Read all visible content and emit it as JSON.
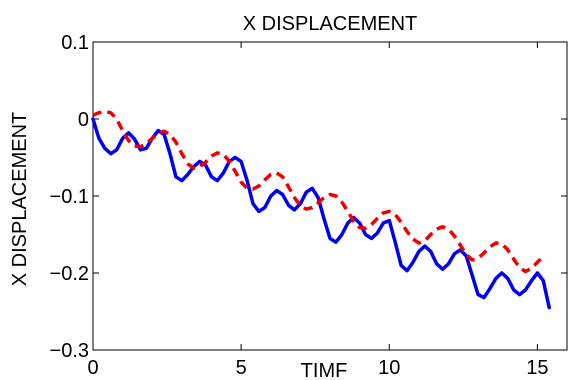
{
  "chart_data": {
    "type": "line",
    "title": "X DISPLACEMENT",
    "xlabel": "TIMF",
    "ylabel": "X DISPLACEMENT",
    "xlim": [
      0,
      16
    ],
    "ylim": [
      -0.3,
      0.1
    ],
    "xticks": [
      0,
      5,
      10,
      15
    ],
    "xtick_labels": [
      "0",
      "5",
      "10",
      "15"
    ],
    "yticks": [
      0.1,
      0,
      -0.1,
      -0.2,
      -0.3
    ],
    "ytick_labels": [
      "0.1",
      "0",
      "−0.1",
      "−0.2",
      "−0.3"
    ],
    "grid": false,
    "legend": "none",
    "series": [
      {
        "color": "#0000ee",
        "style": "solid",
        "x": [
          0,
          0.2,
          0.4,
          0.6,
          0.8,
          1.0,
          1.2,
          1.4,
          1.6,
          1.8,
          2.0,
          2.2,
          2.4,
          2.6,
          2.8,
          3.0,
          3.2,
          3.4,
          3.6,
          3.8,
          4.0,
          4.2,
          4.4,
          4.6,
          4.8,
          5.0,
          5.2,
          5.4,
          5.6,
          5.8,
          6.0,
          6.2,
          6.4,
          6.6,
          6.8,
          7.0,
          7.2,
          7.4,
          7.6,
          7.8,
          8.0,
          8.2,
          8.4,
          8.6,
          8.8,
          9.0,
          9.2,
          9.4,
          9.6,
          9.8,
          10.0,
          10.2,
          10.4,
          10.6,
          10.8,
          11.0,
          11.2,
          11.4,
          11.6,
          11.8,
          12.0,
          12.2,
          12.4,
          12.6,
          12.8,
          13.0,
          13.2,
          13.4,
          13.6,
          13.8,
          14.0,
          14.2,
          14.4,
          14.6,
          14.8,
          15.0,
          15.2,
          15.4
        ],
        "y": [
          0.0,
          -0.025,
          -0.038,
          -0.045,
          -0.04,
          -0.025,
          -0.018,
          -0.026,
          -0.04,
          -0.038,
          -0.025,
          -0.015,
          -0.02,
          -0.045,
          -0.075,
          -0.08,
          -0.072,
          -0.062,
          -0.055,
          -0.06,
          -0.075,
          -0.08,
          -0.07,
          -0.055,
          -0.05,
          -0.055,
          -0.08,
          -0.11,
          -0.12,
          -0.115,
          -0.1,
          -0.093,
          -0.098,
          -0.112,
          -0.118,
          -0.11,
          -0.095,
          -0.09,
          -0.102,
          -0.13,
          -0.155,
          -0.16,
          -0.15,
          -0.135,
          -0.128,
          -0.135,
          -0.15,
          -0.155,
          -0.148,
          -0.135,
          -0.132,
          -0.16,
          -0.19,
          -0.197,
          -0.186,
          -0.172,
          -0.165,
          -0.172,
          -0.188,
          -0.195,
          -0.188,
          -0.175,
          -0.17,
          -0.178,
          -0.203,
          -0.228,
          -0.232,
          -0.22,
          -0.207,
          -0.2,
          -0.207,
          -0.222,
          -0.228,
          -0.222,
          -0.21,
          -0.2,
          -0.21,
          -0.245
        ]
      },
      {
        "color": "#ee0000",
        "style": "dashed",
        "x": [
          0,
          0.2,
          0.4,
          0.6,
          0.8,
          1.0,
          1.2,
          1.4,
          1.6,
          1.8,
          2.0,
          2.2,
          2.4,
          2.6,
          2.8,
          3.0,
          3.2,
          3.4,
          3.6,
          3.8,
          4.0,
          4.2,
          4.4,
          4.6,
          4.8,
          5.0,
          5.2,
          5.4,
          5.6,
          5.8,
          6.0,
          6.2,
          6.4,
          6.6,
          6.8,
          7.0,
          7.2,
          7.4,
          7.6,
          7.8,
          8.0,
          8.2,
          8.4,
          8.6,
          8.8,
          9.0,
          9.2,
          9.4,
          9.6,
          9.8,
          10.0,
          10.2,
          10.4,
          10.6,
          10.8,
          11.0,
          11.2,
          11.4,
          11.6,
          11.8,
          12.0,
          12.2,
          12.4,
          12.6,
          12.8,
          13.0,
          13.2,
          13.4,
          13.6,
          13.8,
          14.0,
          14.2,
          14.4,
          14.6,
          14.8,
          15.0,
          15.2
        ],
        "y": [
          0.005,
          0.008,
          0.01,
          0.008,
          0.0,
          -0.015,
          -0.028,
          -0.035,
          -0.036,
          -0.032,
          -0.025,
          -0.019,
          -0.016,
          -0.02,
          -0.03,
          -0.045,
          -0.058,
          -0.064,
          -0.062,
          -0.056,
          -0.048,
          -0.044,
          -0.046,
          -0.055,
          -0.068,
          -0.082,
          -0.09,
          -0.091,
          -0.087,
          -0.079,
          -0.072,
          -0.07,
          -0.075,
          -0.088,
          -0.102,
          -0.113,
          -0.117,
          -0.115,
          -0.109,
          -0.102,
          -0.098,
          -0.1,
          -0.108,
          -0.12,
          -0.133,
          -0.141,
          -0.142,
          -0.137,
          -0.129,
          -0.122,
          -0.12,
          -0.124,
          -0.134,
          -0.146,
          -0.156,
          -0.161,
          -0.158,
          -0.15,
          -0.143,
          -0.14,
          -0.143,
          -0.152,
          -0.164,
          -0.176,
          -0.183,
          -0.181,
          -0.174,
          -0.166,
          -0.161,
          -0.162,
          -0.17,
          -0.182,
          -0.193,
          -0.198,
          -0.194,
          -0.186,
          -0.179
        ]
      }
    ]
  }
}
